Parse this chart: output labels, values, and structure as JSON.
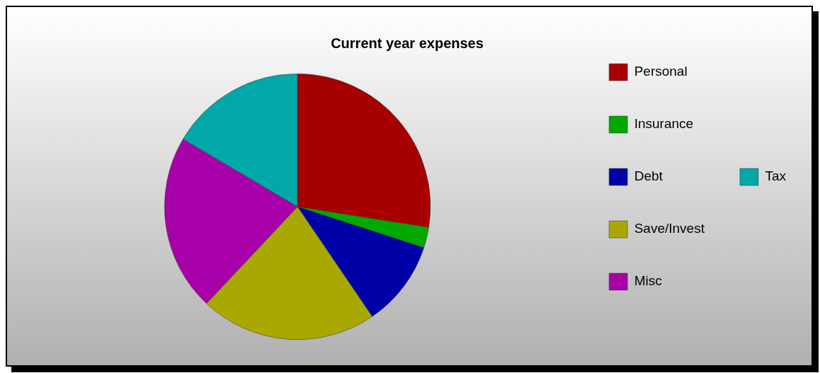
{
  "chart_data": {
    "type": "pie",
    "title": "Current year expenses",
    "categories": [
      "Personal",
      "Insurance",
      "Debt",
      "Save/Invest",
      "Misc",
      "Tax"
    ],
    "values": [
      27.5,
      2.5,
      10.5,
      21.5,
      21.5,
      16.5
    ],
    "colors": [
      "#a80000",
      "#00a800",
      "#0000a8",
      "#a8a800",
      "#a800a8",
      "#00a8a8"
    ],
    "legend": "right"
  }
}
